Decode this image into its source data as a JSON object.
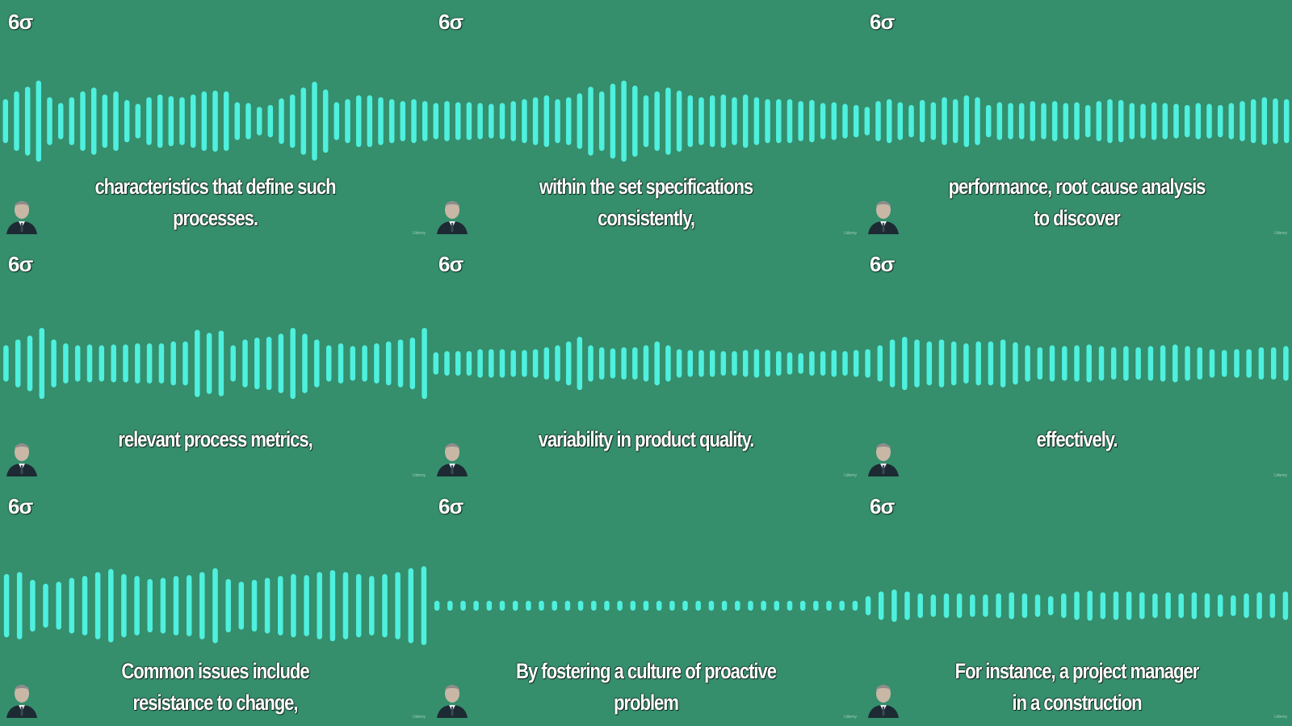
{
  "brand": {
    "logo_text": "6σ",
    "watermark_text": "Udemy",
    "accent_color": "#4ef0de",
    "background_color": "#358e6c"
  },
  "tiles": [
    {
      "caption": "characteristics that define such processes.",
      "waveform": [
        0.5,
        0.7,
        0.82,
        0.98,
        0.55,
        0.4,
        0.55,
        0.7,
        0.8,
        0.62,
        0.7,
        0.48,
        0.38,
        0.55,
        0.62,
        0.58,
        0.55,
        0.62,
        0.7,
        0.72,
        0.7,
        0.42,
        0.4,
        0.3,
        0.35,
        0.52,
        0.62,
        0.8,
        0.95,
        0.75,
        0.42,
        0.5,
        0.6,
        0.6,
        0.55,
        0.5,
        0.45,
        0.5,
        0.45
      ]
    },
    {
      "caption": "within the set specifications consistently,",
      "waveform": [
        0.4,
        0.45,
        0.42,
        0.42,
        0.4,
        0.38,
        0.4,
        0.45,
        0.5,
        0.55,
        0.6,
        0.5,
        0.55,
        0.65,
        0.82,
        0.7,
        0.9,
        0.98,
        0.85,
        0.6,
        0.7,
        0.8,
        0.72,
        0.6,
        0.55,
        0.6,
        0.62,
        0.55,
        0.62,
        0.55,
        0.5,
        0.5,
        0.5,
        0.45,
        0.48,
        0.4,
        0.42,
        0.38,
        0.35
      ]
    },
    {
      "caption": "performance, root cause analysis to discover",
      "waveform": [
        0.3,
        0.45,
        0.5,
        0.42,
        0.35,
        0.48,
        0.42,
        0.55,
        0.5,
        0.6,
        0.55,
        0.35,
        0.42,
        0.4,
        0.4,
        0.45,
        0.4,
        0.45,
        0.4,
        0.42,
        0.35,
        0.45,
        0.5,
        0.48,
        0.4,
        0.38,
        0.42,
        0.4,
        0.38,
        0.35,
        0.4,
        0.38,
        0.35,
        0.4,
        0.45,
        0.5,
        0.55,
        0.52,
        0.5
      ]
    },
    {
      "caption": "relevant process metrics,",
      "waveform": [
        0.4,
        0.55,
        0.65,
        0.85,
        0.55,
        0.45,
        0.4,
        0.42,
        0.4,
        0.42,
        0.42,
        0.45,
        0.45,
        0.45,
        0.5,
        0.5,
        0.8,
        0.72,
        0.78,
        0.4,
        0.55,
        0.6,
        0.62,
        0.7,
        0.85,
        0.7,
        0.55,
        0.4,
        0.45,
        0.38,
        0.4,
        0.45,
        0.5,
        0.55,
        0.6,
        0.85
      ]
    },
    {
      "caption": "variability in product quality.",
      "waveform": [
        0.22,
        0.25,
        0.25,
        0.25,
        0.3,
        0.3,
        0.3,
        0.28,
        0.28,
        0.3,
        0.35,
        0.4,
        0.5,
        0.62,
        0.4,
        0.35,
        0.32,
        0.35,
        0.35,
        0.4,
        0.5,
        0.4,
        0.3,
        0.28,
        0.28,
        0.28,
        0.25,
        0.25,
        0.28,
        0.3,
        0.28,
        0.25,
        0.22,
        0.2,
        0.25,
        0.25,
        0.28,
        0.25,
        0.28
      ]
    },
    {
      "caption": "effectively.",
      "waveform": [
        0.3,
        0.4,
        0.55,
        0.62,
        0.55,
        0.5,
        0.55,
        0.5,
        0.45,
        0.5,
        0.5,
        0.55,
        0.48,
        0.4,
        0.35,
        0.4,
        0.38,
        0.4,
        0.42,
        0.38,
        0.35,
        0.38,
        0.35,
        0.38,
        0.4,
        0.42,
        0.38,
        0.35,
        0.3,
        0.28,
        0.3,
        0.3,
        0.35,
        0.35,
        0.38
      ]
    },
    {
      "caption": "Common issues include resistance to change,",
      "waveform": [
        0.75,
        0.8,
        0.6,
        0.5,
        0.55,
        0.65,
        0.7,
        0.8,
        0.88,
        0.75,
        0.7,
        0.62,
        0.65,
        0.7,
        0.72,
        0.8,
        0.9,
        0.62,
        0.55,
        0.6,
        0.65,
        0.7,
        0.75,
        0.72,
        0.8,
        0.85,
        0.8,
        0.75,
        0.7,
        0.75,
        0.8,
        0.9,
        0.95
      ]
    },
    {
      "caption": "By fostering a culture of proactive problem",
      "waveform": [
        0.06,
        0.06,
        0.06,
        0.06,
        0.06,
        0.06,
        0.06,
        0.06,
        0.06,
        0.06,
        0.06,
        0.06,
        0.06,
        0.06,
        0.06,
        0.06,
        0.06,
        0.06,
        0.06,
        0.06,
        0.06,
        0.06,
        0.06,
        0.06,
        0.06,
        0.06,
        0.06,
        0.06,
        0.06,
        0.06,
        0.06,
        0.06,
        0.06
      ]
    },
    {
      "caption": "For instance, a project manager in a construction",
      "waveform": [
        0.18,
        0.3,
        0.35,
        0.3,
        0.25,
        0.22,
        0.25,
        0.25,
        0.22,
        0.22,
        0.25,
        0.28,
        0.25,
        0.22,
        0.18,
        0.25,
        0.3,
        0.32,
        0.28,
        0.3,
        0.3,
        0.28,
        0.25,
        0.28,
        0.25,
        0.28,
        0.25,
        0.22,
        0.2,
        0.25,
        0.28,
        0.25,
        0.3
      ]
    }
  ]
}
